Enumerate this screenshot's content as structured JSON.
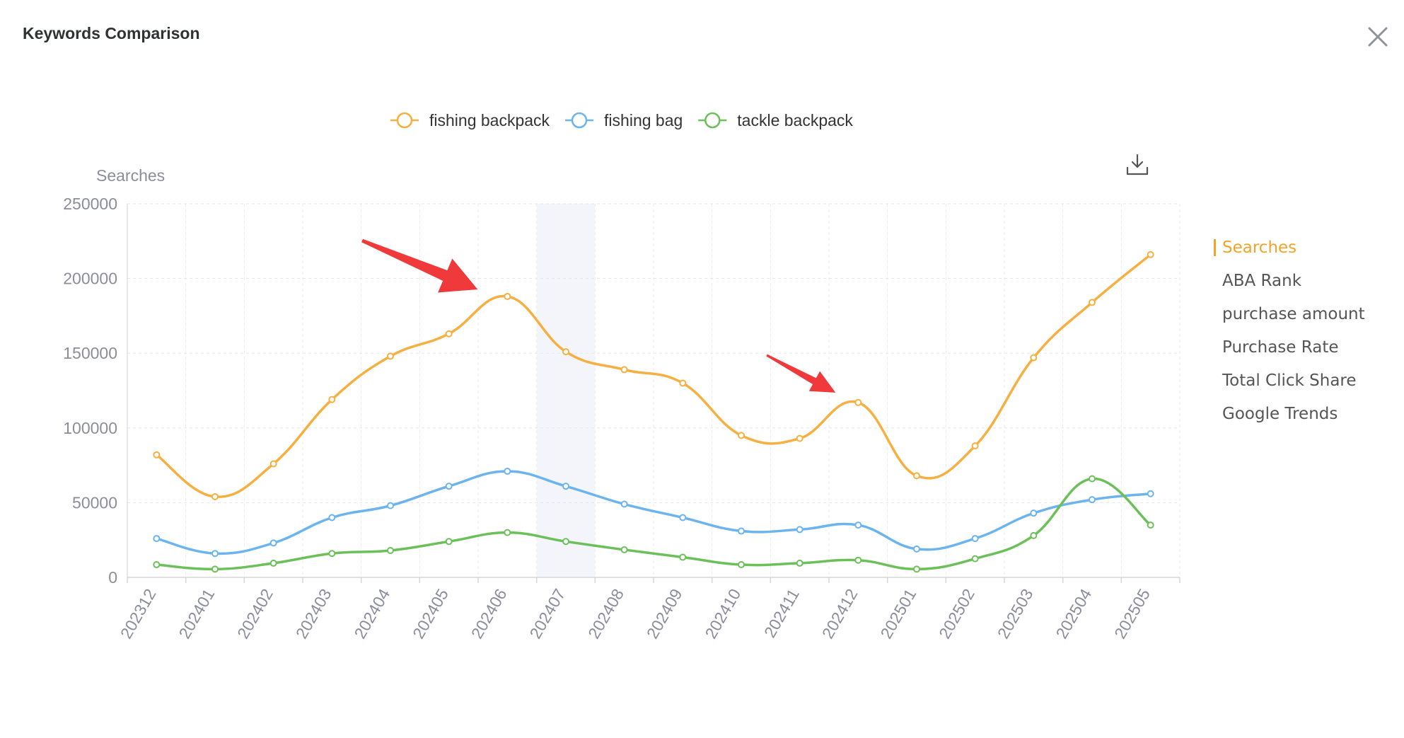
{
  "dialog": {
    "title": "Keywords Comparison"
  },
  "toolbar": {
    "close_icon": "close-icon",
    "download_icon": "download-icon"
  },
  "metrics": {
    "items": [
      "Searches",
      "ABA Rank",
      "purchase amount",
      "Purchase Rate",
      "Total Click Share",
      "Google Trends"
    ],
    "active": 0
  },
  "colors": {
    "fishing_backpack": "#f5b041",
    "fishing_bag": "#6cb4ee",
    "tackle_backpack": "#6cc05a",
    "highlight_band": "#f3f5fa",
    "arrow": "#f0393a"
  },
  "chart_data": {
    "type": "line",
    "ylabel": "Searches",
    "ylim": [
      0,
      250000
    ],
    "yticks": [
      0,
      50000,
      100000,
      150000,
      200000,
      250000
    ],
    "categories": [
      "202312",
      "202401",
      "202402",
      "202403",
      "202404",
      "202405",
      "202406",
      "202407",
      "202408",
      "202409",
      "202410",
      "202411",
      "202412",
      "202501",
      "202502",
      "202503",
      "202504",
      "202505"
    ],
    "highlighted_category": "202407",
    "smooth": true,
    "grid": true,
    "legend_position": "top-center",
    "series": [
      {
        "name": "fishing backpack",
        "values": [
          82000,
          54000,
          76000,
          119000,
          148000,
          163000,
          188000,
          151000,
          139000,
          130000,
          95000,
          93000,
          117000,
          68000,
          88000,
          147000,
          184000,
          216000
        ]
      },
      {
        "name": "fishing bag",
        "values": [
          26000,
          16000,
          23000,
          40000,
          48000,
          61000,
          71000,
          61000,
          49000,
          40000,
          31000,
          32000,
          35000,
          19000,
          26000,
          43000,
          52000,
          56000
        ]
      },
      {
        "name": "tackle backpack",
        "values": [
          8500,
          5500,
          9500,
          16000,
          18000,
          24000,
          30000,
          24000,
          18500,
          13500,
          8500,
          9500,
          11500,
          5500,
          12500,
          28000,
          66000,
          35000
        ]
      }
    ],
    "annotations": [
      {
        "type": "arrow",
        "category": "202406"
      },
      {
        "type": "arrow",
        "category": "202412"
      }
    ]
  }
}
